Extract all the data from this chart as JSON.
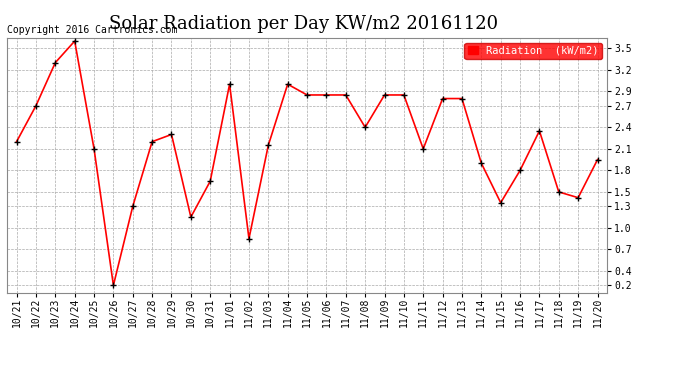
{
  "title": "Solar Radiation per Day KW/m2 20161120",
  "copyright_text": "Copyright 2016 Cartronics.com",
  "legend_label": "Radiation  (kW/m2)",
  "dates": [
    "10/21",
    "10/22",
    "10/23",
    "10/24",
    "10/25",
    "10/26",
    "10/27",
    "10/28",
    "10/29",
    "10/30",
    "10/31",
    "11/01",
    "11/02",
    "11/03",
    "11/04",
    "11/05",
    "11/06",
    "11/07",
    "11/08",
    "11/09",
    "11/10",
    "11/11",
    "11/12",
    "11/13",
    "11/14",
    "11/15",
    "11/16",
    "11/17",
    "11/18",
    "11/19",
    "11/20"
  ],
  "values": [
    2.2,
    2.7,
    3.3,
    3.6,
    2.1,
    0.2,
    1.3,
    2.2,
    2.3,
    1.15,
    1.65,
    3.0,
    0.85,
    2.15,
    3.0,
    2.85,
    2.85,
    2.85,
    2.4,
    2.85,
    2.85,
    2.1,
    2.8,
    2.8,
    1.9,
    1.35,
    1.8,
    2.35,
    1.5,
    1.42,
    1.95
  ],
  "line_color": "#ff0000",
  "marker": "+",
  "marker_color": "#000000",
  "marker_size": 5,
  "line_width": 1.2,
  "bg_color": "#ffffff",
  "grid_color": "#aaaaaa",
  "legend_bg": "#ff0000",
  "legend_text_color": "#ffffff",
  "ylim": [
    0.1,
    3.65
  ],
  "yticks": [
    0.2,
    0.4,
    0.7,
    1.0,
    1.3,
    1.5,
    1.8,
    2.1,
    2.4,
    2.7,
    2.9,
    3.2,
    3.5
  ],
  "title_fontsize": 13,
  "copyright_fontsize": 7,
  "tick_fontsize": 7,
  "legend_fontsize": 7.5
}
